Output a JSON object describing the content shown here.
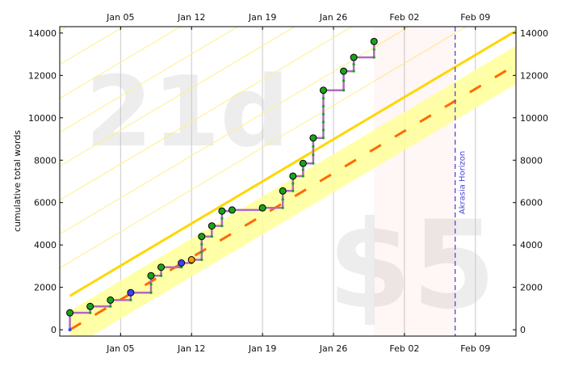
{
  "chart_data": {
    "type": "line",
    "title": "",
    "xlabel": "",
    "ylabel": "cumulative total words",
    "xlim": [
      "2014-12-30",
      "2015-02-13"
    ],
    "ylim": [
      -300,
      14300
    ],
    "x_ticks": [
      {
        "date": "2015-01-05",
        "label": "Jan 05"
      },
      {
        "date": "2015-01-12",
        "label": "Jan 12"
      },
      {
        "date": "2015-01-19",
        "label": "Jan 19"
      },
      {
        "date": "2015-01-26",
        "label": "Jan 26"
      },
      {
        "date": "2015-02-02",
        "label": "Feb 02"
      },
      {
        "date": "2015-02-09",
        "label": "Feb 09"
      }
    ],
    "y_ticks": [
      0,
      2000,
      4000,
      6000,
      8000,
      10000,
      12000,
      14000
    ],
    "grid": "vertical",
    "watermarks": {
      "days_left": "21d",
      "pledge": "$5"
    },
    "akrasia_horizon": {
      "date": "2015-02-07",
      "label": "Akrasia Horizon"
    },
    "road": {
      "start": [
        "2014-12-31",
        0
      ],
      "end": [
        "2015-02-13",
        12500
      ],
      "color": "#ff6a00"
    },
    "series": [
      {
        "kind": "datapoints",
        "points": [
          [
            "2014-12-31",
            800
          ],
          [
            "2015-01-02",
            1100
          ],
          [
            "2015-01-04",
            1400
          ],
          [
            "2015-01-06",
            1750
          ],
          [
            "2015-01-08",
            2550
          ],
          [
            "2015-01-09",
            2950
          ],
          [
            "2015-01-11",
            3150
          ],
          [
            "2015-01-12",
            3300
          ],
          [
            "2015-01-13",
            4400
          ],
          [
            "2015-01-14",
            4900
          ],
          [
            "2015-01-15",
            5600
          ],
          [
            "2015-01-16",
            5650
          ],
          [
            "2015-01-19",
            5750
          ],
          [
            "2015-01-21",
            6550
          ],
          [
            "2015-01-22",
            7250
          ],
          [
            "2015-01-23",
            7850
          ],
          [
            "2015-01-24",
            9050
          ],
          [
            "2015-01-25",
            11300
          ],
          [
            "2015-01-27",
            12200
          ],
          [
            "2015-01-28",
            12850
          ],
          [
            "2015-01-30",
            13600
          ]
        ],
        "orange_points": [
          "2015-01-12"
        ],
        "blue_points": [
          "2015-01-06",
          "2015-01-11"
        ]
      }
    ],
    "colors": {
      "progress_line": "#b06ac0",
      "point_green": "#19a319",
      "point_blue": "#4040ff",
      "point_orange": "#ff9900",
      "yellow_band": "#ffff99",
      "yellow_line": "#ffd700",
      "guide_line": "#fff08a",
      "horizon": "#4a4ad0"
    }
  }
}
